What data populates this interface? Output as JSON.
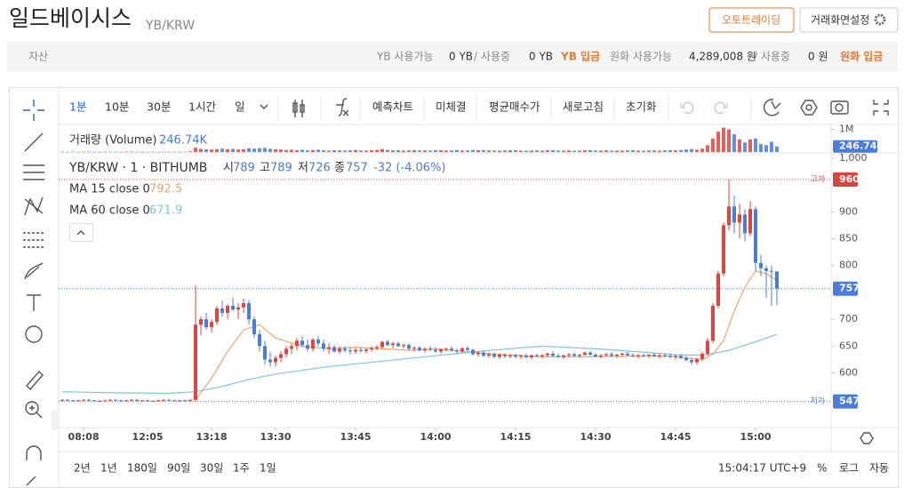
{
  "header": {
    "title": "일드베이시스",
    "pair": "YB/KRW",
    "buttons": [
      "오토트레이딩",
      "거래화면설정"
    ]
  },
  "assets": {
    "label": "자산",
    "items": [
      "YB 사용가능",
      "0 YB",
      "/ 사용중",
      "0 YB",
      "YB 입금",
      "원화 사용가능",
      "4,289,008 원",
      "/ 사용중",
      "0 원",
      "원화 입금"
    ]
  },
  "toolbar": {
    "intervals": [
      "1분",
      "10분",
      "30분",
      "1시간",
      "일"
    ],
    "tools": [
      "예측차트",
      "미체결",
      "평균매수가",
      "새로고침",
      "초기화"
    ]
  },
  "chart_data": {
    "type": "candlestick",
    "symbol": "YB/KRW · 1 · BITHUMB",
    "ohlc_labels": [
      "시",
      "고",
      "저",
      "종"
    ],
    "ohlc": [
      789,
      789,
      726,
      757
    ],
    "change": "-32 (-4.06%)",
    "volume_title": "거래량 (Volume)",
    "volume_last": {
      "value": 246740,
      "label": "246.74K"
    },
    "up_color": "#e0443c",
    "down_color": "#4a7ddb",
    "ylim": [
      500,
      1013
    ],
    "yticks": [
      {
        "value": 1000,
        "label": "1,000"
      },
      900,
      850,
      800,
      700,
      650,
      600
    ],
    "volume_ylim": [
      0,
      1100000
    ],
    "volume_ticks": [
      {
        "value": 1000000,
        "label": "1M"
      }
    ],
    "xticks": [
      {
        "value": 4,
        "label": "08:08"
      },
      {
        "value": 16,
        "label": "12:05"
      },
      {
        "value": 28,
        "label": "13:18"
      },
      {
        "value": 40,
        "label": "13:30"
      },
      {
        "value": 55,
        "label": "13:45"
      },
      {
        "value": 70,
        "label": "14:00"
      },
      {
        "value": 85,
        "label": "14:15"
      },
      {
        "value": 100,
        "label": "14:30"
      },
      {
        "value": 115,
        "label": "14:45"
      },
      {
        "value": 130,
        "label": "15:00"
      }
    ],
    "price_lines": [
      {
        "label": "고가",
        "value": 960,
        "color": "#d9453b"
      },
      {
        "value": 757,
        "color": "#4a7ddb"
      },
      {
        "label": "저가",
        "value": 547,
        "color": "#4a7ddb"
      }
    ],
    "studies": [
      {
        "name": "MA 15 close 0",
        "value": 792.5,
        "color": "#f4a36b",
        "x": [
          25,
          28,
          31,
          34,
          37,
          40,
          45,
          50,
          55,
          60,
          65,
          70,
          75,
          80,
          85,
          90,
          95,
          100,
          105,
          110,
          115,
          120,
          122,
          124,
          126,
          128,
          130,
          132,
          134
        ],
        "values": [
          550,
          590,
          640,
          680,
          690,
          665,
          650,
          645,
          648,
          645,
          642,
          645,
          640,
          636,
          633,
          630,
          630,
          630,
          631,
          632,
          630,
          625,
          635,
          660,
          715,
          760,
          790,
          785,
          772
        ]
      },
      {
        "name": "MA 60 close 0",
        "value": 671.9,
        "color": "#7fc4e6",
        "x": [
          0,
          10,
          20,
          25,
          30,
          35,
          40,
          50,
          60,
          70,
          80,
          90,
          100,
          110,
          115,
          120,
          125,
          130,
          134
        ],
        "values": [
          565,
          563,
          562,
          565,
          575,
          588,
          598,
          612,
          622,
          632,
          642,
          650,
          645,
          638,
          634,
          633,
          642,
          658,
          671.9
        ]
      }
    ],
    "candles": [
      [
        549,
        551,
        547,
        550
      ],
      [
        550,
        551,
        548,
        549
      ],
      [
        549,
        550,
        547,
        548
      ],
      [
        548,
        550,
        547,
        549
      ],
      [
        549,
        551,
        548,
        550
      ],
      [
        550,
        552,
        548,
        549
      ],
      [
        549,
        550,
        547,
        548
      ],
      [
        548,
        549,
        547,
        548
      ],
      [
        548,
        550,
        547,
        549
      ],
      [
        549,
        551,
        548,
        550
      ],
      [
        550,
        551,
        548,
        549
      ],
      [
        549,
        550,
        547,
        548
      ],
      [
        548,
        550,
        547,
        549
      ],
      [
        549,
        551,
        548,
        550
      ],
      [
        550,
        551,
        548,
        548
      ],
      [
        548,
        550,
        547,
        549
      ],
      [
        549,
        550,
        547,
        548
      ],
      [
        548,
        549,
        547,
        548
      ],
      [
        548,
        550,
        547,
        549
      ],
      [
        549,
        551,
        548,
        550
      ],
      [
        550,
        551,
        548,
        549
      ],
      [
        549,
        550,
        547,
        548
      ],
      [
        548,
        550,
        547,
        549
      ],
      [
        549,
        550,
        547,
        548
      ],
      [
        548,
        550,
        547,
        550
      ],
      [
        550,
        763,
        547,
        690
      ],
      [
        690,
        705,
        670,
        700
      ],
      [
        700,
        712,
        680,
        685
      ],
      [
        685,
        700,
        675,
        695
      ],
      [
        695,
        725,
        690,
        720
      ],
      [
        720,
        735,
        705,
        712
      ],
      [
        712,
        728,
        700,
        725
      ],
      [
        725,
        740,
        715,
        718
      ],
      [
        718,
        730,
        700,
        722
      ],
      [
        722,
        738,
        712,
        730
      ],
      [
        730,
        735,
        690,
        700
      ],
      [
        700,
        705,
        665,
        672
      ],
      [
        672,
        680,
        640,
        650
      ],
      [
        650,
        660,
        615,
        625
      ],
      [
        625,
        640,
        612,
        620
      ],
      [
        620,
        632,
        612,
        628
      ],
      [
        628,
        640,
        620,
        635
      ],
      [
        635,
        650,
        628,
        645
      ],
      [
        645,
        655,
        635,
        650
      ],
      [
        650,
        665,
        642,
        660
      ],
      [
        660,
        668,
        648,
        652
      ],
      [
        652,
        662,
        640,
        645
      ],
      [
        645,
        665,
        640,
        662
      ],
      [
        662,
        668,
        650,
        655
      ],
      [
        655,
        662,
        640,
        645
      ],
      [
        645,
        655,
        635,
        648
      ],
      [
        648,
        652,
        638,
        640
      ],
      [
        640,
        650,
        636,
        645
      ],
      [
        645,
        650,
        638,
        642
      ],
      [
        642,
        648,
        635,
        640
      ],
      [
        640,
        646,
        636,
        643
      ],
      [
        643,
        648,
        638,
        641
      ],
      [
        641,
        646,
        637,
        644
      ],
      [
        644,
        650,
        640,
        646
      ],
      [
        646,
        652,
        642,
        648
      ],
      [
        648,
        660,
        645,
        658
      ],
      [
        658,
        662,
        650,
        652
      ],
      [
        652,
        658,
        646,
        655
      ],
      [
        655,
        658,
        648,
        650
      ],
      [
        650,
        655,
        645,
        652
      ],
      [
        652,
        655,
        642,
        645
      ],
      [
        645,
        650,
        640,
        647
      ],
      [
        647,
        650,
        640,
        642
      ],
      [
        642,
        648,
        638,
        645
      ],
      [
        645,
        650,
        640,
        643
      ],
      [
        643,
        648,
        638,
        640
      ],
      [
        640,
        646,
        636,
        644
      ],
      [
        644,
        648,
        640,
        645
      ],
      [
        645,
        650,
        640,
        642
      ],
      [
        642,
        646,
        636,
        640
      ],
      [
        640,
        648,
        638,
        646
      ],
      [
        646,
        650,
        640,
        643
      ],
      [
        643,
        646,
        632,
        635
      ],
      [
        635,
        640,
        630,
        638
      ],
      [
        638,
        642,
        630,
        632
      ],
      [
        632,
        638,
        628,
        635
      ],
      [
        635,
        638,
        628,
        630
      ],
      [
        630,
        636,
        626,
        634
      ],
      [
        634,
        637,
        628,
        631
      ],
      [
        631,
        635,
        627,
        633
      ],
      [
        633,
        636,
        628,
        630
      ],
      [
        630,
        634,
        626,
        632
      ],
      [
        632,
        636,
        628,
        629
      ],
      [
        629,
        634,
        626,
        633
      ],
      [
        633,
        636,
        629,
        631
      ],
      [
        631,
        635,
        627,
        633
      ],
      [
        633,
        638,
        630,
        636
      ],
      [
        636,
        640,
        630,
        632
      ],
      [
        632,
        636,
        628,
        630
      ],
      [
        630,
        634,
        626,
        633
      ],
      [
        633,
        637,
        629,
        635
      ],
      [
        635,
        638,
        630,
        632
      ],
      [
        632,
        636,
        628,
        634
      ],
      [
        634,
        640,
        632,
        638
      ],
      [
        638,
        641,
        632,
        634
      ],
      [
        634,
        637,
        629,
        631
      ],
      [
        631,
        635,
        627,
        633
      ],
      [
        633,
        637,
        630,
        635
      ],
      [
        635,
        639,
        630,
        632
      ],
      [
        632,
        636,
        628,
        634
      ],
      [
        634,
        638,
        630,
        636
      ],
      [
        636,
        639,
        631,
        633
      ],
      [
        633,
        637,
        629,
        631
      ],
      [
        631,
        635,
        627,
        633
      ],
      [
        633,
        636,
        629,
        632
      ],
      [
        632,
        635,
        628,
        634
      ],
      [
        634,
        637,
        630,
        631
      ],
      [
        631,
        635,
        627,
        633
      ],
      [
        633,
        636,
        629,
        632
      ],
      [
        632,
        636,
        628,
        630
      ],
      [
        630,
        634,
        625,
        632
      ],
      [
        632,
        635,
        626,
        628
      ],
      [
        628,
        632,
        622,
        624
      ],
      [
        624,
        628,
        615,
        620
      ],
      [
        620,
        628,
        615,
        626
      ],
      [
        626,
        640,
        622,
        636
      ],
      [
        636,
        665,
        632,
        660
      ],
      [
        660,
        730,
        655,
        725
      ],
      [
        725,
        790,
        720,
        785
      ],
      [
        785,
        880,
        780,
        875
      ],
      [
        875,
        960,
        865,
        910
      ],
      [
        910,
        930,
        860,
        880
      ],
      [
        880,
        915,
        850,
        895
      ],
      [
        895,
        905,
        845,
        860
      ],
      [
        860,
        920,
        855,
        905
      ],
      [
        905,
        910,
        790,
        805
      ],
      [
        805,
        820,
        780,
        795
      ],
      [
        795,
        800,
        740,
        790
      ],
      [
        790,
        800,
        725,
        789
      ],
      [
        789,
        789,
        726,
        757
      ]
    ],
    "volume": [
      15000,
      12000,
      18000,
      10000,
      14000,
      16000,
      11000,
      9000,
      13000,
      15000,
      12000,
      10000,
      14000,
      17000,
      11000,
      9000,
      12000,
      13000,
      10000,
      15000,
      12000,
      14000,
      11000,
      13000,
      30000,
      190000,
      140000,
      120000,
      110000,
      130000,
      150000,
      120000,
      140000,
      110000,
      120000,
      160000,
      150000,
      170000,
      180000,
      140000,
      120000,
      110000,
      90000,
      100000,
      80000,
      95000,
      70000,
      85000,
      100000,
      75000,
      60000,
      80000,
      70000,
      65000,
      75000,
      90000,
      70000,
      60000,
      80000,
      95000,
      130000,
      90000,
      70000,
      80000,
      60000,
      75000,
      85000,
      65000,
      70000,
      60000,
      80000,
      75000,
      65000,
      70000,
      85000,
      60000,
      70000,
      90000,
      80000,
      75000,
      70000,
      65000,
      60000,
      70000,
      75000,
      80000,
      60000,
      55000,
      65000,
      70000,
      60000,
      75000,
      80000,
      65000,
      60000,
      70000,
      55000,
      60000,
      75000,
      80000,
      65000,
      60000,
      70000,
      55000,
      65000,
      60000,
      70000,
      75000,
      60000,
      55000,
      65000,
      70000,
      60000,
      75000,
      80000,
      70000,
      90000,
      110000,
      130000,
      100000,
      150000,
      300000,
      600000,
      900000,
      1080000,
      1000000,
      780000,
      560000,
      420000,
      560000,
      600000,
      350000,
      300000,
      450000,
      246740
    ]
  },
  "footer": {
    "ranges": [
      "2년",
      "1년",
      "180일",
      "90일",
      "30일",
      "1주",
      "1일"
    ],
    "clock": "15:04:17 UTC+9",
    "options": [
      "%",
      "로그",
      "자동"
    ]
  }
}
